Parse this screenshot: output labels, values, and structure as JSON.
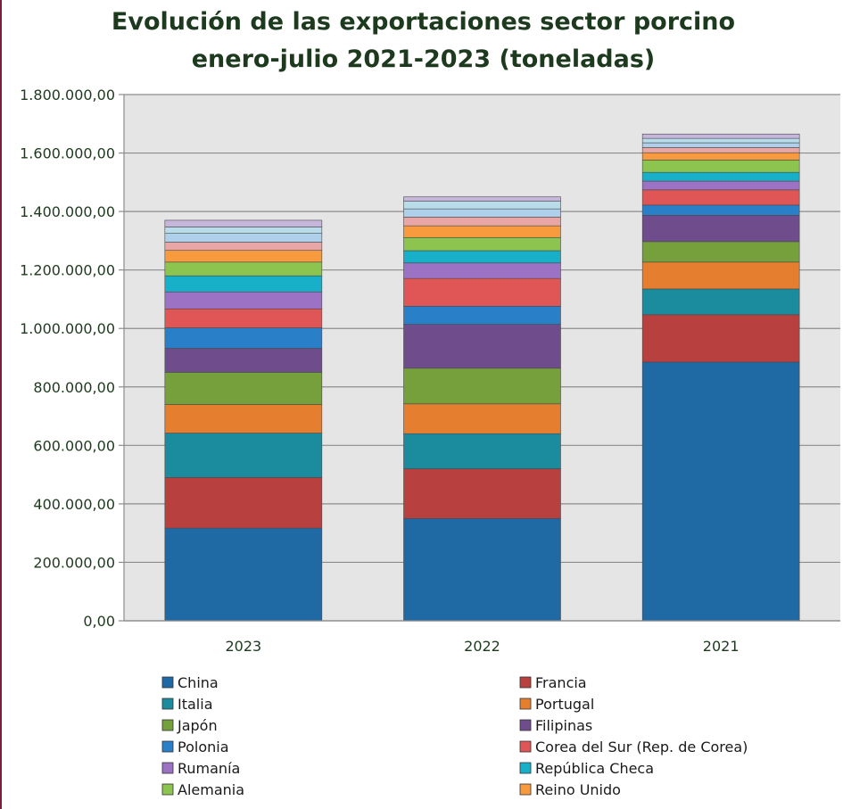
{
  "chart_data": {
    "type": "bar",
    "stacked": true,
    "title_line1": "Evolución de las exportaciones sector porcino",
    "title_line2": "enero-julio  2021-2023 (toneladas)",
    "categories": [
      "2023",
      "2022",
      "2021"
    ],
    "ylim": [
      0,
      1800000
    ],
    "yticks": [
      {
        "value": 0,
        "label": "0,00"
      },
      {
        "value": 200000,
        "label": "200.000,00"
      },
      {
        "value": 400000,
        "label": "400.000,00"
      },
      {
        "value": 600000,
        "label": "600.000,00"
      },
      {
        "value": 800000,
        "label": "800.000,00"
      },
      {
        "value": 1000000,
        "label": "1.000.000,00"
      },
      {
        "value": 1200000,
        "label": "1.200.000,00"
      },
      {
        "value": 1400000,
        "label": "1.400.000,00"
      },
      {
        "value": 1600000,
        "label": "1.600.000,00"
      },
      {
        "value": 1800000,
        "label": "1.800.000,00"
      }
    ],
    "grid": true,
    "legend_position": "bottom",
    "series": [
      {
        "name": "China",
        "color": "#1f6aa5",
        "values": [
          317000,
          350000,
          885000
        ],
        "in_legend": true
      },
      {
        "name": "Francia",
        "color": "#b8403e",
        "values": [
          173000,
          170000,
          162000
        ],
        "in_legend": true
      },
      {
        "name": "Italia",
        "color": "#1a8c9e",
        "values": [
          152000,
          120000,
          88000
        ],
        "in_legend": true
      },
      {
        "name": "Portugal",
        "color": "#e67e30",
        "values": [
          98000,
          102000,
          92000
        ],
        "in_legend": true
      },
      {
        "name": "Japón",
        "color": "#76a03c",
        "values": [
          110000,
          122000,
          70000
        ],
        "in_legend": true
      },
      {
        "name": "Filipinas",
        "color": "#6f4d8c",
        "values": [
          82000,
          150000,
          90000
        ],
        "in_legend": true
      },
      {
        "name": "Polonia",
        "color": "#2a7fc9",
        "values": [
          70000,
          62000,
          35000
        ],
        "in_legend": true
      },
      {
        "name": "Corea del Sur (Rep. de Corea)",
        "color": "#e05656",
        "values": [
          65000,
          95000,
          52000
        ],
        "in_legend": true
      },
      {
        "name": "Rumanía",
        "color": "#9b72c4",
        "values": [
          58000,
          53000,
          30000
        ],
        "in_legend": true
      },
      {
        "name": "República Checa",
        "color": "#17b0c8",
        "values": [
          55000,
          42000,
          30000
        ],
        "in_legend": true
      },
      {
        "name": "Alemania",
        "color": "#8cc44f",
        "values": [
          47000,
          45000,
          42000
        ],
        "in_legend": true
      },
      {
        "name": "Reino Unido",
        "color": "#f79b3e",
        "values": [
          40000,
          40000,
          25000
        ],
        "in_legend": true
      },
      {
        "name": "",
        "color": "#e8a6a6",
        "values": [
          28000,
          30000,
          18000
        ],
        "in_legend": false
      },
      {
        "name": "",
        "color": "#aed0ea",
        "values": [
          30000,
          28000,
          16000
        ],
        "in_legend": false
      },
      {
        "name": "",
        "color": "#b8dcea",
        "values": [
          22000,
          26000,
          15000
        ],
        "in_legend": false
      },
      {
        "name": "",
        "color": "#c7b6dc",
        "values": [
          23000,
          15000,
          15000
        ],
        "in_legend": false
      }
    ]
  }
}
